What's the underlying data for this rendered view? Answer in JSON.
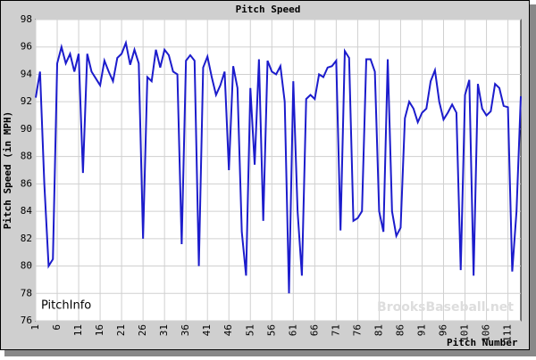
{
  "chart_data": {
    "type": "line",
    "title": "Pitch Speed",
    "xlabel": "Pitch Number",
    "ylabel": "Pitch Speed (in MPH)",
    "watermarks": [
      "PitchInfo",
      "BrooksBaseball.net"
    ],
    "x": [
      1,
      2,
      3,
      4,
      5,
      6,
      7,
      8,
      9,
      10,
      11,
      12,
      13,
      14,
      15,
      16,
      17,
      18,
      19,
      20,
      21,
      22,
      23,
      24,
      25,
      26,
      27,
      28,
      29,
      30,
      31,
      32,
      33,
      34,
      35,
      36,
      37,
      38,
      39,
      40,
      41,
      42,
      43,
      44,
      45,
      46,
      47,
      48,
      49,
      50,
      51,
      52,
      53,
      54,
      55,
      56,
      57,
      58,
      59,
      60,
      61,
      62,
      63,
      64,
      65,
      66,
      67,
      68,
      69,
      70,
      71,
      72,
      73,
      74,
      75,
      76,
      77,
      78,
      79,
      80,
      81,
      82,
      83,
      84,
      85,
      86,
      87,
      88,
      89,
      90,
      91,
      92,
      93,
      94,
      95,
      96,
      97,
      98,
      99,
      100,
      101,
      102,
      103,
      104,
      105,
      106,
      107,
      108,
      109,
      110,
      111,
      112,
      113,
      114
    ],
    "series": [
      {
        "name": "Pitch Speed",
        "color": "#1c1ccc",
        "values": [
          92.3,
          94.2,
          86,
          80,
          80.5,
          94.8,
          96,
          94.8,
          95.5,
          94.2,
          95.5,
          86.8,
          95.5,
          94.2,
          93.7,
          93.2,
          95,
          94.2,
          93.5,
          95.2,
          95.5,
          96.3,
          94.7,
          95.8,
          94.8,
          82,
          93.8,
          93.5,
          95.8,
          94.5,
          95.8,
          95.4,
          94.2,
          94,
          81.6,
          95,
          95.4,
          95,
          80,
          94.5,
          95.3,
          93.8,
          92.5,
          93.2,
          94.2,
          87,
          94.6,
          93,
          82.5,
          79.3,
          93,
          87.4,
          95.1,
          83.3,
          95,
          94.2,
          94,
          94.6,
          92,
          78,
          93.5,
          84,
          79.3,
          92.2,
          92.5,
          92.2,
          94,
          93.8,
          94.5,
          94.6,
          95,
          82.6,
          95.7,
          95.2,
          83.3,
          83.5,
          84,
          95.1,
          95.1,
          94.2,
          84,
          82.5,
          95.1,
          84,
          82.2,
          82.8,
          90.8,
          92,
          91.5,
          90.5,
          91.2,
          91.5,
          93.5,
          94.3,
          92,
          90.7,
          91.2,
          91.8,
          91.2,
          79.7,
          92.5,
          93.6,
          79.3,
          93.3,
          91.5,
          91,
          91.3,
          93.3,
          93,
          91.7,
          91.6,
          79.6,
          84,
          92.4
        ]
      }
    ],
    "xlim": [
      1,
      114
    ],
    "ylim": [
      76,
      98
    ],
    "xticks": [
      1,
      6,
      11,
      16,
      21,
      26,
      31,
      36,
      41,
      46,
      51,
      56,
      61,
      66,
      71,
      76,
      81,
      86,
      91,
      96,
      101,
      106,
      111
    ],
    "yticks": [
      76,
      78,
      80,
      82,
      84,
      86,
      88,
      90,
      92,
      94,
      96,
      98
    ],
    "grid": true
  }
}
